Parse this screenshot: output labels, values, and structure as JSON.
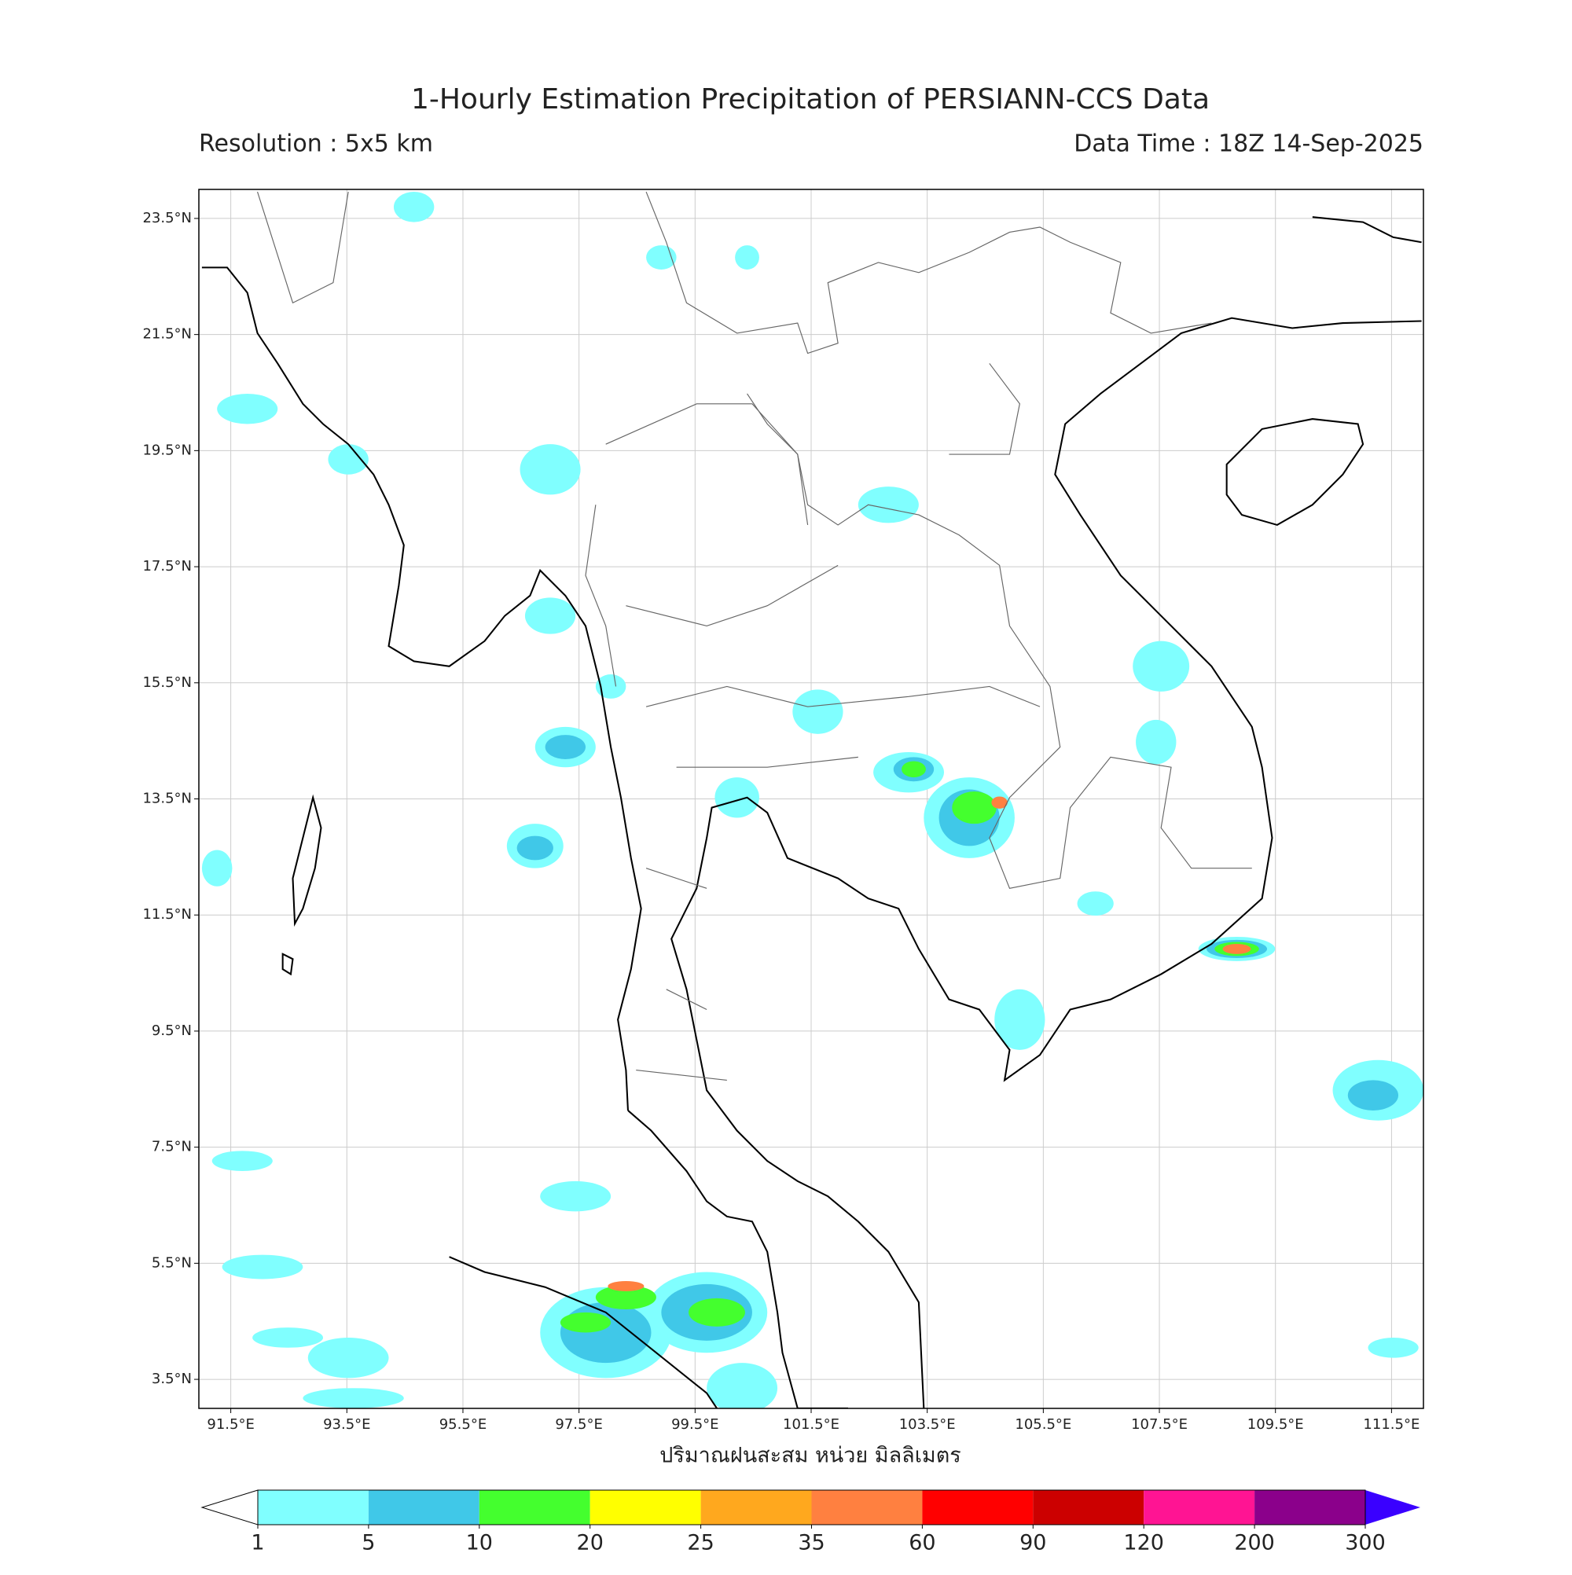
{
  "title": "1-Hourly Estimation Precipitation of PERSIANN-CCS Data",
  "resolution": "Resolution : 5x5 km",
  "data_time": "Data Time : 18Z 14-Sep-2025",
  "axis": {
    "xlim": [
      90.95,
      112.05
    ],
    "ylim": [
      3.0,
      24.0
    ],
    "xticks": [
      {
        "value": 91.5,
        "label": "91.5°E"
      },
      {
        "value": 93.5,
        "label": "93.5°E"
      },
      {
        "value": 95.5,
        "label": "95.5°E"
      },
      {
        "value": 97.5,
        "label": "97.5°E"
      },
      {
        "value": 99.5,
        "label": "99.5°E"
      },
      {
        "value": 101.5,
        "label": "101.5°E"
      },
      {
        "value": 103.5,
        "label": "103.5°E"
      },
      {
        "value": 105.5,
        "label": "105.5°E"
      },
      {
        "value": 107.5,
        "label": "107.5°E"
      },
      {
        "value": 109.5,
        "label": "109.5°E"
      },
      {
        "value": 111.5,
        "label": "111.5°E"
      }
    ],
    "yticks": [
      {
        "value": 23.5,
        "label": "23.5°N"
      },
      {
        "value": 21.5,
        "label": "21.5°N"
      },
      {
        "value": 19.5,
        "label": "19.5°N"
      },
      {
        "value": 17.5,
        "label": "17.5°N"
      },
      {
        "value": 15.5,
        "label": "15.5°N"
      },
      {
        "value": 13.5,
        "label": "13.5°N"
      },
      {
        "value": 11.5,
        "label": "11.5°N"
      },
      {
        "value": 9.5,
        "label": "9.5°N"
      },
      {
        "value": 7.5,
        "label": "7.5°N"
      },
      {
        "value": 5.5,
        "label": "5.5°N"
      },
      {
        "value": 3.5,
        "label": "3.5°N"
      }
    ],
    "grid": true
  },
  "colorbar": {
    "label": "ปริมาณฝนสะสม หน่วย มิลลิเมตร",
    "levels": [
      1,
      5,
      10,
      20,
      25,
      35,
      60,
      90,
      120,
      200,
      300
    ],
    "colors": [
      "#80ffff",
      "#40c8e8",
      "#44ff2e",
      "#ffff00",
      "#ffa81e",
      "#ff8040",
      "#ff0000",
      "#cc0000",
      "#ff1493",
      "#8b008b",
      "#3a00ff"
    ]
  }
}
